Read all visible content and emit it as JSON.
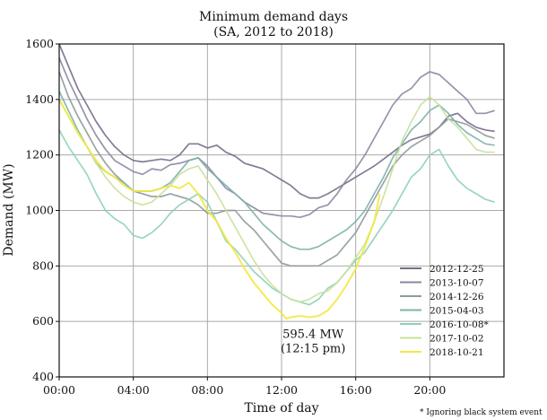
{
  "chart_data": {
    "type": "line",
    "title": "Minimum demand days",
    "subtitle": "(SA,  2012 to 2018)",
    "xlabel": "Time of day",
    "ylabel": "Demand (MW)",
    "xlim": [
      0,
      24
    ],
    "ylim": [
      400,
      1600
    ],
    "grid": true,
    "x_ticks": [
      {
        "value": 0,
        "label": "00:00"
      },
      {
        "value": 4,
        "label": "04:00"
      },
      {
        "value": 8,
        "label": "08:00"
      },
      {
        "value": 12,
        "label": "12:00"
      },
      {
        "value": 16,
        "label": "16:00"
      },
      {
        "value": 20,
        "label": "20:00"
      }
    ],
    "y_ticks": [
      {
        "value": 400,
        "label": "400"
      },
      {
        "value": 600,
        "label": "600"
      },
      {
        "value": 800,
        "label": "800"
      },
      {
        "value": 1000,
        "label": "1000"
      },
      {
        "value": 1200,
        "label": "1200"
      },
      {
        "value": 1400,
        "label": "1400"
      },
      {
        "value": 1600,
        "label": "1600"
      }
    ],
    "legend_position": "bottom-right",
    "series": [
      {
        "name": "2012-12-25",
        "color": "#776d8a",
        "x": [
          0,
          0.5,
          1,
          1.5,
          2,
          2.5,
          3,
          3.5,
          4,
          4.5,
          5,
          5.5,
          6,
          6.5,
          7,
          7.5,
          8,
          8.5,
          9,
          9.5,
          10,
          10.5,
          11,
          11.5,
          12,
          12.5,
          13,
          13.5,
          14,
          14.5,
          15,
          15.5,
          16,
          16.5,
          17,
          17.5,
          18,
          18.5,
          19,
          19.5,
          20,
          20.5,
          21,
          21.5,
          22,
          22.5,
          23,
          23.5
        ],
        "y": [
          1600,
          1520,
          1440,
          1380,
          1320,
          1270,
          1230,
          1200,
          1180,
          1175,
          1180,
          1185,
          1180,
          1200,
          1240,
          1240,
          1225,
          1235,
          1210,
          1195,
          1170,
          1160,
          1150,
          1130,
          1110,
          1090,
          1060,
          1045,
          1045,
          1060,
          1080,
          1100,
          1120,
          1140,
          1160,
          1185,
          1210,
          1235,
          1255,
          1265,
          1275,
          1300,
          1340,
          1350,
          1320,
          1300,
          1290,
          1285
        ]
      },
      {
        "name": "2013-10-07",
        "color": "#8d87a2",
        "x": [
          0,
          0.5,
          1,
          1.5,
          2,
          2.5,
          3,
          3.5,
          4,
          4.5,
          5,
          5.5,
          6,
          6.5,
          7,
          7.5,
          8,
          8.5,
          9,
          9.5,
          10,
          10.5,
          11,
          11.5,
          12,
          12.5,
          13,
          13.5,
          14,
          14.5,
          15,
          15.5,
          16,
          16.5,
          17,
          17.5,
          18,
          18.5,
          19,
          19.5,
          20,
          20.5,
          21,
          21.5,
          22,
          22.5,
          23,
          23.5
        ],
        "y": [
          1550,
          1470,
          1400,
          1330,
          1270,
          1220,
          1180,
          1160,
          1140,
          1130,
          1150,
          1145,
          1165,
          1170,
          1180,
          1190,
          1160,
          1120,
          1080,
          1060,
          1030,
          1010,
          990,
          985,
          980,
          980,
          975,
          985,
          1010,
          1020,
          1060,
          1110,
          1150,
          1200,
          1260,
          1320,
          1380,
          1420,
          1440,
          1480,
          1500,
          1490,
          1460,
          1430,
          1400,
          1350,
          1350,
          1360
        ]
      },
      {
        "name": "2014-12-26",
        "color": "#8f9a9d",
        "x": [
          0,
          0.5,
          1,
          1.5,
          2,
          2.5,
          3,
          3.5,
          4,
          4.5,
          5,
          5.5,
          6,
          6.5,
          7,
          7.5,
          8,
          8.5,
          9,
          9.5,
          10,
          10.5,
          11,
          11.5,
          12,
          12.5,
          13,
          13.5,
          14,
          14.5,
          15,
          15.5,
          16,
          16.5,
          17,
          17.5,
          18,
          18.5,
          19,
          19.5,
          20,
          20.5,
          21,
          21.5,
          22,
          22.5,
          23,
          23.5
        ],
        "y": [
          1500,
          1410,
          1340,
          1280,
          1220,
          1170,
          1130,
          1100,
          1070,
          1060,
          1050,
          1050,
          1060,
          1050,
          1040,
          1020,
          990,
          990,
          1000,
          1000,
          960,
          930,
          890,
          850,
          810,
          800,
          800,
          800,
          800,
          820,
          840,
          880,
          920,
          980,
          1040,
          1100,
          1160,
          1200,
          1230,
          1250,
          1270,
          1300,
          1330,
          1320,
          1310,
          1290,
          1270,
          1260
        ]
      },
      {
        "name": "2015-04-03",
        "color": "#7cb3a8",
        "x": [
          0,
          0.5,
          1,
          1.5,
          2,
          2.5,
          3,
          3.5,
          4,
          4.5,
          5,
          5.5,
          6,
          6.5,
          7,
          7.5,
          8,
          8.5,
          9,
          9.5,
          10,
          10.5,
          11,
          11.5,
          12,
          12.5,
          13,
          13.5,
          14,
          14.5,
          15,
          15.5,
          16,
          16.5,
          17,
          17.5,
          18,
          18.5,
          19,
          19.5,
          20,
          20.5,
          21,
          21.5,
          22,
          22.5,
          23,
          23.5
        ],
        "y": [
          1430,
          1360,
          1290,
          1230,
          1170,
          1140,
          1120,
          1100,
          1070,
          1070,
          1070,
          1080,
          1100,
          1140,
          1180,
          1190,
          1150,
          1120,
          1090,
          1060,
          1030,
          990,
          950,
          920,
          890,
          870,
          860,
          860,
          870,
          890,
          910,
          930,
          960,
          1000,
          1060,
          1120,
          1190,
          1240,
          1290,
          1320,
          1360,
          1380,
          1350,
          1310,
          1280,
          1260,
          1240,
          1235
        ]
      },
      {
        "name": "2016-10-08*",
        "color": "#8ed2b8",
        "x": [
          0,
          0.5,
          1,
          1.5,
          2,
          2.5,
          3,
          3.5,
          4,
          4.5,
          5,
          5.5,
          6,
          6.5,
          7,
          7.5,
          8,
          8.5,
          9,
          9.5,
          10,
          10.5,
          11,
          11.5,
          12,
          12.5,
          13,
          13.5,
          14,
          14.5,
          15,
          15.5,
          16,
          16.5,
          17,
          17.5,
          18,
          18.5,
          19,
          19.5,
          20,
          20.5,
          21,
          21.5,
          22,
          22.5,
          23,
          23.5
        ],
        "y": [
          1290,
          1230,
          1180,
          1130,
          1060,
          1000,
          970,
          950,
          910,
          900,
          920,
          950,
          990,
          1020,
          1040,
          1060,
          1030,
          960,
          890,
          860,
          820,
          780,
          750,
          720,
          700,
          680,
          670,
          660,
          680,
          720,
          740,
          780,
          820,
          850,
          900,
          950,
          1000,
          1060,
          1120,
          1150,
          1200,
          1220,
          1160,
          1110,
          1080,
          1060,
          1040,
          1030
        ]
      },
      {
        "name": "2017-10-02",
        "color": "#c9e19c",
        "x": [
          0,
          0.5,
          1,
          1.5,
          2,
          2.5,
          3,
          3.5,
          4,
          4.5,
          5,
          5.5,
          6,
          6.5,
          7,
          7.5,
          8,
          8.5,
          9,
          9.5,
          10,
          10.5,
          11,
          11.5,
          12,
          12.5,
          13,
          13.5,
          14,
          14.5,
          15,
          15.5,
          16,
          16.5,
          17,
          17.5,
          18,
          18.5,
          19,
          19.5,
          20,
          20.5,
          21,
          21.5,
          22,
          22.5,
          23,
          23.5
        ],
        "y": [
          1400,
          1340,
          1280,
          1230,
          1170,
          1120,
          1080,
          1050,
          1030,
          1020,
          1030,
          1060,
          1090,
          1130,
          1150,
          1160,
          1110,
          1060,
          1000,
          940,
          880,
          820,
          770,
          730,
          700,
          680,
          670,
          680,
          700,
          710,
          740,
          780,
          830,
          880,
          960,
          1050,
          1150,
          1250,
          1320,
          1380,
          1410,
          1380,
          1330,
          1300,
          1260,
          1220,
          1210,
          1210
        ]
      },
      {
        "name": "2018-10-21",
        "color": "#f3e843",
        "x": [
          0,
          0.5,
          1,
          1.5,
          2,
          2.5,
          3,
          3.5,
          4,
          4.5,
          5,
          5.5,
          6,
          6.5,
          7,
          7.5,
          8,
          8.5,
          9,
          9.5,
          10,
          10.5,
          11,
          11.5,
          12,
          12.25,
          12.5,
          13,
          13.5,
          14,
          14.5,
          15,
          15.5,
          16,
          16.5,
          17,
          17.3
        ],
        "y": [
          1400,
          1340,
          1280,
          1230,
          1180,
          1140,
          1120,
          1090,
          1070,
          1070,
          1070,
          1080,
          1090,
          1080,
          1100,
          1060,
          1000,
          960,
          900,
          850,
          790,
          740,
          700,
          660,
          630,
          610,
          615,
          620,
          615,
          620,
          640,
          680,
          730,
          790,
          870,
          960,
          1060
        ]
      }
    ],
    "annotation": {
      "line1": "595.4 MW",
      "line2": "(12:15 pm)",
      "x": 13.7,
      "y": 540
    },
    "footnote": "* Ignoring black system event"
  }
}
